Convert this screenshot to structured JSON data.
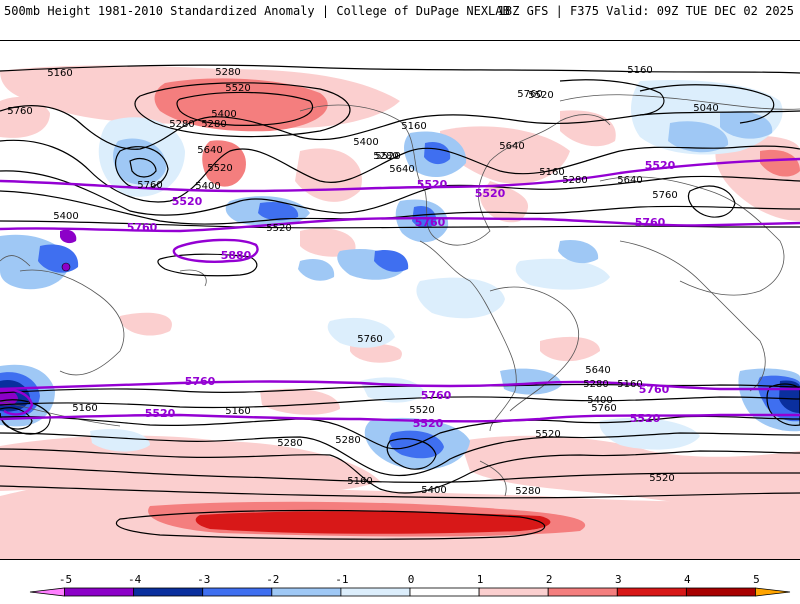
{
  "header": {
    "title_left": "500mb Height 1981-2010 Standardized Anomaly | College of DuPage NEXLAB",
    "title_right": "18Z GFS | F375 Valid: 09Z TUE DEC 02 2025"
  },
  "colors": {
    "black_contour": "#000000",
    "purple_contour": "#9400d3",
    "land_outline": "#555555"
  },
  "legend": {
    "ticks": [
      "-5",
      "-4",
      "-3",
      "-2",
      "-1",
      "0",
      "1",
      "2",
      "3",
      "4",
      "5"
    ],
    "bins": [
      {
        "from": -5.5,
        "to": -5,
        "color": "#ff7fff"
      },
      {
        "from": -5,
        "to": -4,
        "color": "#8c00c8"
      },
      {
        "from": -4,
        "to": -3,
        "color": "#0a2f9e"
      },
      {
        "from": -3,
        "to": -2,
        "color": "#3f6ff0"
      },
      {
        "from": -2,
        "to": -1,
        "color": "#9fc8f5"
      },
      {
        "from": -1,
        "to": 0,
        "color": "#dceefc"
      },
      {
        "from": 0,
        "to": 1,
        "color": "#ffffff"
      },
      {
        "from": 1,
        "to": 2,
        "color": "#fbcfcf"
      },
      {
        "from": 2,
        "to": 3,
        "color": "#f47e7e"
      },
      {
        "from": 3,
        "to": 4,
        "color": "#d81818"
      },
      {
        "from": 4,
        "to": 5,
        "color": "#a80000"
      },
      {
        "from": 5,
        "to": 5.5,
        "color": "#ffa400"
      }
    ]
  },
  "contour_labels": {
    "black": [
      "5280",
      "5520",
      "5400",
      "5280",
      "5280",
      "5160",
      "5160",
      "5040",
      "5400",
      "5520",
      "5160",
      "5640",
      "5760",
      "5760",
      "5400",
      "5520",
      "5640",
      "5760",
      "5160",
      "5280",
      "5520",
      "5640",
      "5760",
      "5280",
      "5400",
      "5520",
      "5640",
      "5760",
      "5160",
      "5280",
      "5400",
      "5160",
      "5520",
      "5280",
      "5520",
      "5280",
      "5160",
      "5280",
      "5640",
      "5400",
      "5760",
      "5520",
      "5160"
    ],
    "purple": [
      "5520",
      "5520",
      "5520",
      "5520",
      "5760",
      "5760",
      "5760",
      "5880",
      "5760",
      "5760",
      "5760",
      "5520",
      "5520",
      "5520"
    ]
  }
}
